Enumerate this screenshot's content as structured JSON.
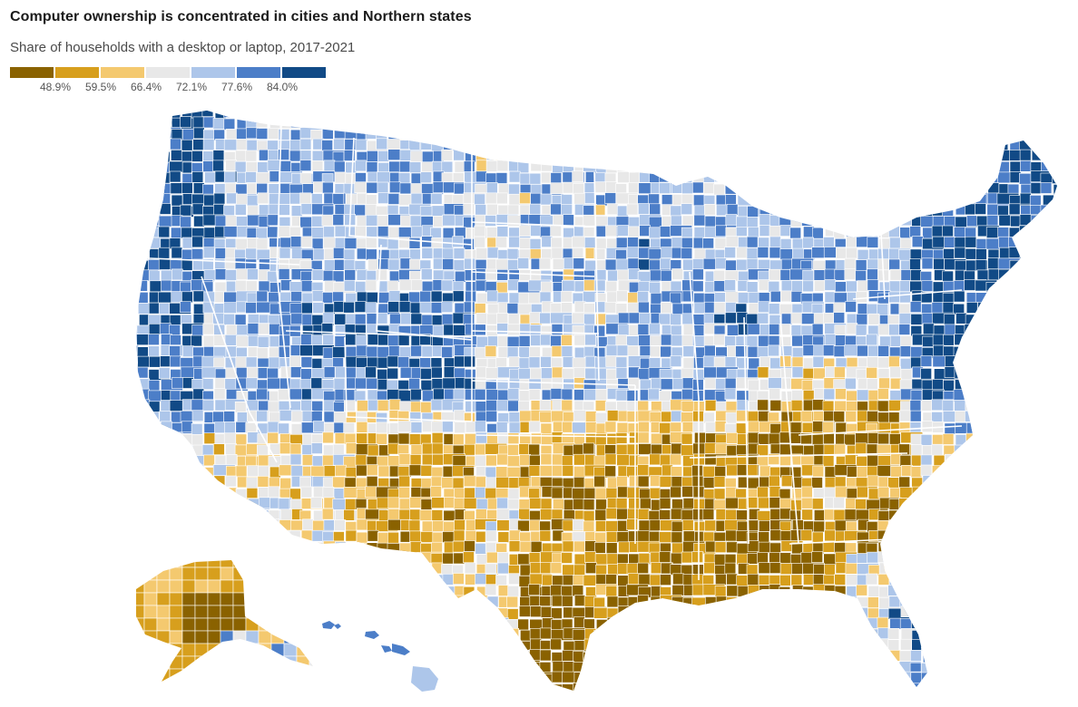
{
  "title": "Computer ownership is concentrated in cities and Northern states",
  "subtitle": "Share of households with a desktop or laptop, 2017-2021",
  "legend": {
    "colors": [
      "#8a6200",
      "#d79f1d",
      "#f4c96f",
      "#e8e8e8",
      "#adc6ea",
      "#4c7ec8",
      "#114a86"
    ],
    "ticks": [
      "48.9%",
      "59.5%",
      "66.4%",
      "72.1%",
      "77.6%",
      "84.0%"
    ]
  }
}
